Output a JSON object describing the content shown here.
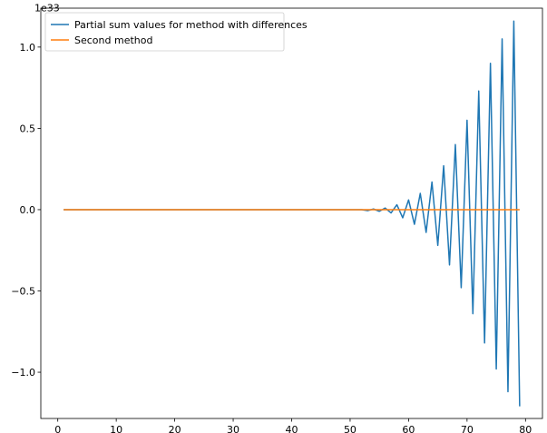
{
  "chart_data": {
    "type": "line",
    "title": "",
    "xlabel": "",
    "ylabel": "",
    "y_offset_text": "1e33",
    "xlim": [
      -2.9,
      82.9
    ],
    "ylim": [
      -1.2845,
      1.2393
    ],
    "x_ticks": [
      0,
      10,
      20,
      30,
      40,
      50,
      60,
      70,
      80
    ],
    "x_tick_labels": [
      "0",
      "10",
      "20",
      "30",
      "40",
      "50",
      "60",
      "70",
      "80"
    ],
    "y_ticks": [
      -1.0,
      -0.5,
      0.0,
      0.5,
      1.0
    ],
    "y_tick_labels": [
      "−1.0",
      "−0.5",
      "0.0",
      "0.5",
      "1.0"
    ],
    "grid": false,
    "legend_position": "upper-left",
    "series": [
      {
        "name": "Partial sum values for method with differences",
        "color": "#1f77b4",
        "x": [
          1,
          2,
          3,
          4,
          5,
          6,
          7,
          8,
          9,
          10,
          11,
          12,
          13,
          14,
          15,
          16,
          17,
          18,
          19,
          20,
          21,
          22,
          23,
          24,
          25,
          26,
          27,
          28,
          29,
          30,
          31,
          32,
          33,
          34,
          35,
          36,
          37,
          38,
          39,
          40,
          41,
          42,
          43,
          44,
          45,
          46,
          47,
          48,
          49,
          50,
          51,
          52,
          53,
          54,
          55,
          56,
          57,
          58,
          59,
          60,
          61,
          62,
          63,
          64,
          65,
          66,
          67,
          68,
          69,
          70,
          71,
          72,
          73,
          74,
          75,
          76,
          77,
          78,
          79
        ],
        "y": [
          0,
          0,
          0,
          0,
          0,
          0,
          0,
          0,
          0,
          0,
          0,
          0,
          0,
          0,
          0,
          0,
          0,
          0,
          0,
          0,
          0,
          0,
          0,
          0,
          0,
          0,
          0,
          0,
          0,
          0,
          0,
          0,
          0,
          0,
          0,
          0,
          0,
          0,
          0,
          0,
          0,
          0,
          0,
          0,
          0,
          0,
          0,
          0,
          0,
          0,
          0,
          0,
          -0.006,
          0.004,
          -0.01,
          0.01,
          -0.02,
          0.03,
          -0.05,
          0.06,
          -0.09,
          0.1,
          -0.14,
          0.17,
          -0.22,
          0.27,
          -0.34,
          0.4,
          -0.48,
          0.55,
          -0.64,
          0.73,
          -0.82,
          0.9,
          -0.98,
          1.05,
          -1.12,
          1.16,
          -1.21
        ]
      },
      {
        "name": "Second method",
        "color": "#ff7f0e",
        "x": [
          1,
          2,
          3,
          4,
          5,
          6,
          7,
          8,
          9,
          10,
          11,
          12,
          13,
          14,
          15,
          16,
          17,
          18,
          19,
          20,
          21,
          22,
          23,
          24,
          25,
          26,
          27,
          28,
          29,
          30,
          31,
          32,
          33,
          34,
          35,
          36,
          37,
          38,
          39,
          40,
          41,
          42,
          43,
          44,
          45,
          46,
          47,
          48,
          49,
          50,
          51,
          52,
          53,
          54,
          55,
          56,
          57,
          58,
          59,
          60,
          61,
          62,
          63,
          64,
          65,
          66,
          67,
          68,
          69,
          70,
          71,
          72,
          73,
          74,
          75,
          76,
          77,
          78,
          79
        ],
        "y": [
          0,
          0,
          0,
          0,
          0,
          0,
          0,
          0,
          0,
          0,
          0,
          0,
          0,
          0,
          0,
          0,
          0,
          0,
          0,
          0,
          0,
          0,
          0,
          0,
          0,
          0,
          0,
          0,
          0,
          0,
          0,
          0,
          0,
          0,
          0,
          0,
          0,
          0,
          0,
          0,
          0,
          0,
          0,
          0,
          0,
          0,
          0,
          0,
          0,
          0,
          0,
          0,
          0,
          0,
          0,
          0,
          0,
          0,
          0,
          0,
          0,
          0,
          0,
          0,
          0,
          0,
          0,
          0,
          0,
          0,
          0,
          0,
          0,
          0,
          0,
          0,
          0,
          0,
          0
        ]
      }
    ]
  }
}
